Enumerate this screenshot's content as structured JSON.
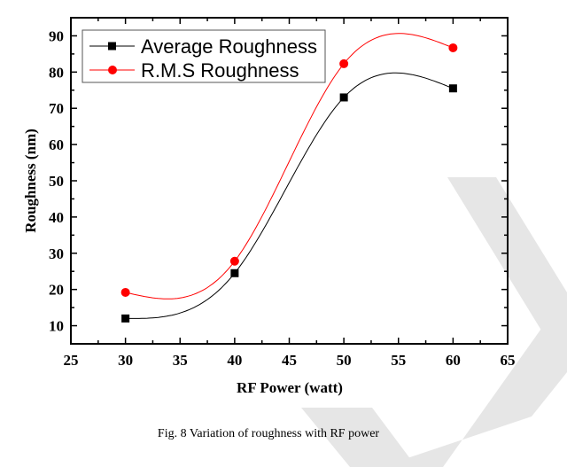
{
  "chart_data": {
    "type": "line",
    "title": "",
    "xlabel": "RF Power (watt)",
    "ylabel": "Roughness (nm)",
    "xlim": [
      25,
      65
    ],
    "ylim": [
      5,
      95
    ],
    "xticks": [
      25,
      30,
      35,
      40,
      45,
      50,
      55,
      60,
      65
    ],
    "yticks": [
      10,
      20,
      30,
      40,
      50,
      60,
      70,
      80,
      90
    ],
    "x": [
      30,
      40,
      50,
      60
    ],
    "series": [
      {
        "name": "Average Roughness",
        "values": [
          12.0,
          24.5,
          73.0,
          75.5
        ],
        "color": "#000000",
        "marker": "square"
      },
      {
        "name": "R.M.S Roughness",
        "values": [
          19.2,
          27.8,
          82.3,
          86.7
        ],
        "color": "#ff0000",
        "marker": "circle"
      }
    ],
    "smoothing": "spline",
    "grid": false,
    "legend_position": "top-left"
  },
  "caption": "Fig. 8 Variation of roughness with RF power"
}
